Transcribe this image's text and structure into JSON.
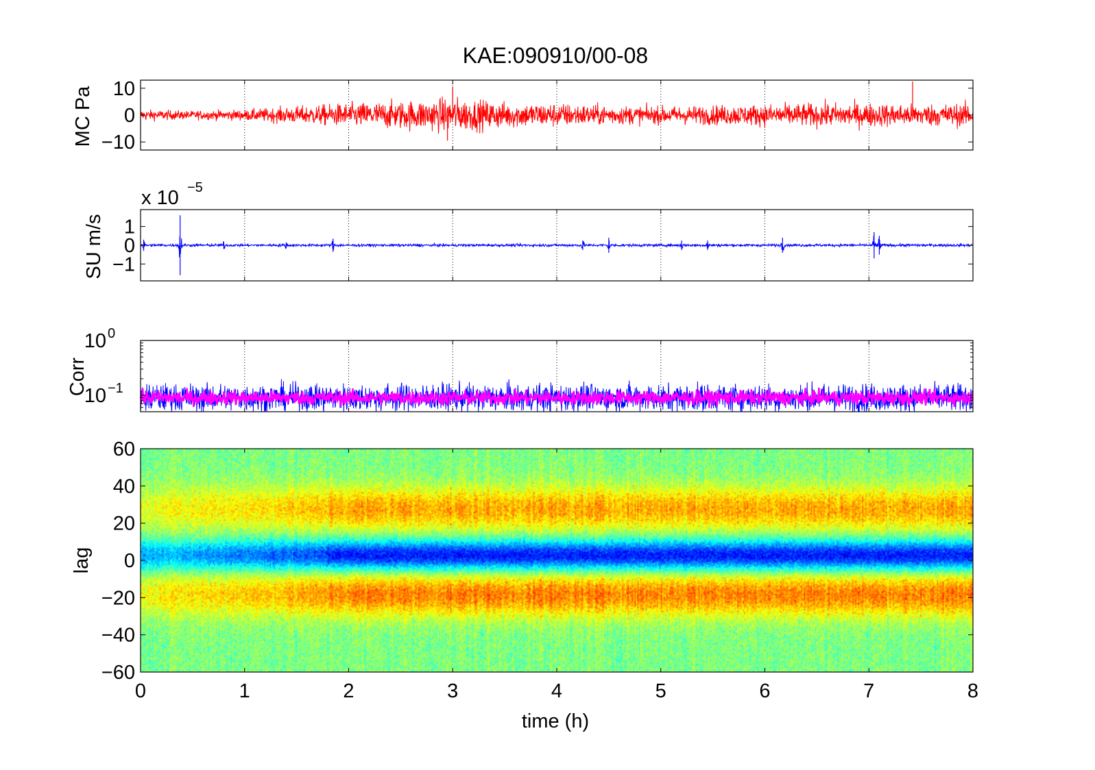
{
  "figure": {
    "title": "KAE:090910/00-08",
    "xlabel": "time (h)",
    "xlim": [
      0,
      8
    ],
    "xticks": [
      "0",
      "1",
      "2",
      "3",
      "4",
      "5",
      "6",
      "7",
      "8"
    ]
  },
  "chart_data": [
    {
      "type": "line",
      "ylabel": "MC Pa",
      "xlim": [
        0,
        8
      ],
      "ylim": [
        -13,
        13
      ],
      "yticks": [
        {
          "value": 10,
          "label": "10"
        },
        {
          "value": 0,
          "label": "0"
        },
        {
          "value": -10,
          "label": "−10"
        }
      ],
      "grid": "x-dotted",
      "color": "#ff0000",
      "envelope": {
        "x": [
          0,
          0.5,
          1,
          1.5,
          2,
          2.5,
          3,
          3.5,
          4,
          4.5,
          5,
          5.5,
          6,
          6.5,
          7,
          7.5,
          8
        ],
        "amp": [
          2.5,
          2.0,
          2.5,
          4.0,
          5.5,
          6.5,
          8.0,
          6.0,
          5.5,
          4.5,
          4.0,
          4.5,
          5.0,
          5.5,
          5.5,
          5.0,
          5.5
        ]
      },
      "spikes": [
        {
          "x": 3.0,
          "y": 10.5
        },
        {
          "x": 2.95,
          "y": -9.5
        },
        {
          "x": 7.42,
          "y": 12.5
        }
      ]
    },
    {
      "type": "line",
      "ylabel": "SU m/s",
      "multiplier": "x 10",
      "exponent": "−5",
      "xlim": [
        0,
        8
      ],
      "ylim": [
        -1.9,
        1.9
      ],
      "yticks": [
        {
          "value": 1,
          "label": "1"
        },
        {
          "value": 0,
          "label": "0"
        },
        {
          "value": -1,
          "label": "−1"
        }
      ],
      "grid": "x-dotted",
      "color": "#0000ff",
      "baseline_amp": 0.08,
      "events": [
        {
          "x": 0.03,
          "amp": 0.3
        },
        {
          "x": 0.38,
          "amp": 1.6
        },
        {
          "x": 0.8,
          "amp": 0.2
        },
        {
          "x": 1.4,
          "amp": 0.15
        },
        {
          "x": 1.85,
          "amp": 0.35
        },
        {
          "x": 4.25,
          "amp": 0.25
        },
        {
          "x": 4.5,
          "amp": 0.4
        },
        {
          "x": 5.2,
          "amp": 0.25
        },
        {
          "x": 5.45,
          "amp": 0.25
        },
        {
          "x": 6.17,
          "amp": 0.4
        },
        {
          "x": 7.05,
          "amp": 0.7
        },
        {
          "x": 7.1,
          "amp": 0.5
        }
      ]
    },
    {
      "type": "line",
      "ylabel": "Corr",
      "yscale": "log",
      "xlim": [
        0,
        8
      ],
      "ylim": [
        0.05,
        1
      ],
      "yticks": [
        {
          "value": 1,
          "label": "10",
          "exponent": "0"
        },
        {
          "value": 0.1,
          "label": "10",
          "exponent": "−1"
        }
      ],
      "grid": "x-dotted",
      "series": [
        {
          "color": "#0000ff",
          "center": 0.09,
          "spread": 0.5
        },
        {
          "color": "#ff00ff",
          "center": 0.09,
          "spread": 0.25
        }
      ]
    },
    {
      "type": "heatmap",
      "ylabel": "lag",
      "xlim": [
        0,
        8
      ],
      "ylim": [
        -60,
        60
      ],
      "yticks": [
        {
          "value": 60,
          "label": "60"
        },
        {
          "value": 40,
          "label": "40"
        },
        {
          "value": 20,
          "label": "20"
        },
        {
          "value": 0,
          "label": "0"
        },
        {
          "value": -20,
          "label": "−20"
        },
        {
          "value": -40,
          "label": "−40"
        },
        {
          "value": -60,
          "label": "−60"
        }
      ],
      "colormap": "jet",
      "bands": [
        {
          "lag": 3,
          "width": 8,
          "level": -0.95
        },
        {
          "lag": 28,
          "width": 12,
          "level": 0.55
        },
        {
          "lag": -18,
          "width": 12,
          "level": 0.65
        }
      ],
      "onset_h": 1.8
    }
  ]
}
